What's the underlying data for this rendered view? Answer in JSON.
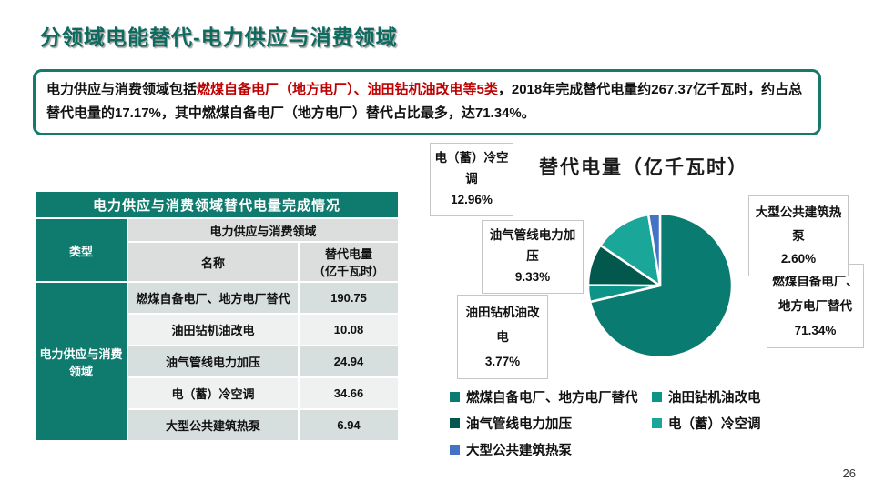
{
  "slide": {
    "title": "分领域电能替代-电力供应与消费领域",
    "page_number": "26"
  },
  "intro": {
    "segments": [
      {
        "text": "电力供应与消费领域包括",
        "color": "black"
      },
      {
        "text": "燃煤自备电厂（地方电厂）、油田钻机油改电等5类",
        "color": "red"
      },
      {
        "text": "，2018年完成替代电量约267.37亿千瓦时，约占总替代电量的17.17%，其中燃煤自备电厂（地方电厂）替代占比最多，达71.34%。",
        "color": "black"
      }
    ]
  },
  "table": {
    "title": "电力供应与消费领域替代电量完成情况",
    "type_header": "类型",
    "group_header": "电力供应与消费领域",
    "name_header": "名称",
    "value_header": "替代电量\n（亿千瓦时）",
    "row_group_label": "电力供应与消费领域",
    "rows": [
      {
        "name": "燃煤自备电厂、地方电厂替代",
        "value": "190.75"
      },
      {
        "name": "油田钻机油改电",
        "value": "10.08"
      },
      {
        "name": "油气管线电力加压",
        "value": "24.94"
      },
      {
        "name": "电（蓄）冷空调",
        "value": "34.66"
      },
      {
        "name": "大型公共建筑热泵",
        "value": "6.94"
      }
    ]
  },
  "chart_data": {
    "type": "pie",
    "title": "替代电量（亿千瓦时）",
    "categories": [
      "燃煤自备电厂、地方电厂替代",
      "油田钻机油改电",
      "油气管线电力加压",
      "电（蓄）冷空调",
      "大型公共建筑热泵"
    ],
    "values": [
      71.34,
      3.77,
      9.33,
      12.96,
      2.6
    ],
    "values_absolute_yi_kwh": [
      190.75,
      10.08,
      24.94,
      34.66,
      6.94
    ],
    "unit": "%",
    "colors": [
      "#0a7b70",
      "#0d9488",
      "#03584e",
      "#1aa79a",
      "#4472c4"
    ],
    "legend_position": "bottom",
    "start_angle_deg": 0,
    "callouts": [
      {
        "label": "电（蓄）冷空调",
        "pct": "12.96%"
      },
      {
        "label": "油气管线电力加压",
        "pct": "9.33%"
      },
      {
        "label": "油田钻机油改电",
        "pct": "3.77%"
      },
      {
        "label": "大型公共建筑热泵",
        "pct": "2.60%"
      },
      {
        "label": "燃煤自备电厂、地方电厂替代",
        "pct": "71.34%"
      }
    ],
    "legend": [
      "燃煤自备电厂、地方电厂替代",
      "油田钻机油改电",
      "油气管线电力加压",
      "电（蓄）冷空调",
      "大型公共建筑热泵"
    ]
  },
  "colors": {
    "accent_teal": "#0f7a6e",
    "title_teal": "#0d6a5e",
    "highlight_red": "#c00000"
  }
}
